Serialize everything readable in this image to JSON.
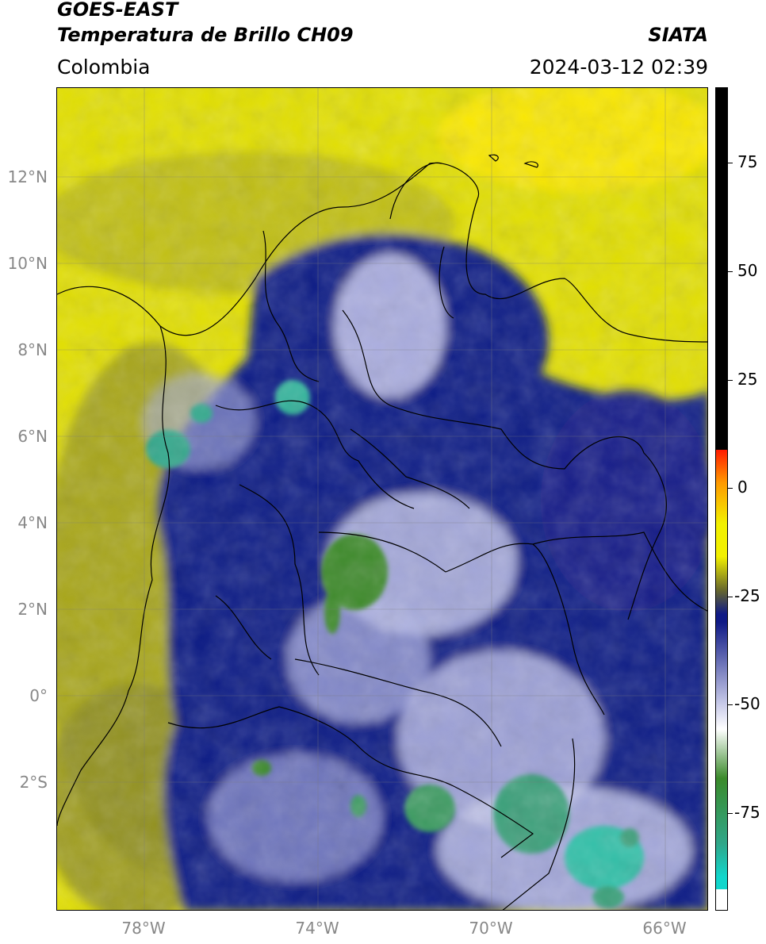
{
  "header": {
    "satellite": "GOES-EAST",
    "product": "Temperatura de Brillo CH09",
    "brand": "SIATA",
    "region": "Colombia",
    "timestamp": "2024-03-12 02:39"
  },
  "map": {
    "lat_labels": [
      "12°N",
      "10°N",
      "8°N",
      "6°N",
      "4°N",
      "2°N",
      "0°",
      "2°S"
    ],
    "lon_labels": [
      "78°W",
      "74°W",
      "70°W",
      "66°W"
    ],
    "extent": {
      "lon_min": -79.9,
      "lon_max": -64.9,
      "lat_min": -5.0,
      "lat_max": 14.0
    }
  },
  "colorbar": {
    "tick_labels": [
      "75",
      "50",
      "25",
      "0",
      "-25",
      "-50",
      "-75"
    ],
    "range": [
      -100,
      90
    ],
    "colors": {
      "cold_min": "#ffffff",
      "cyan": "#11d6cc",
      "teal": "#2fa78a",
      "green": "#3a8a2a",
      "white": "#ffffff",
      "navy": "#0f1a86",
      "olive": "#6a6a2a",
      "yellow": "#f2f000",
      "orange": "#ff9900",
      "red": "#ff1a00",
      "warm_max": "#000000"
    }
  }
}
